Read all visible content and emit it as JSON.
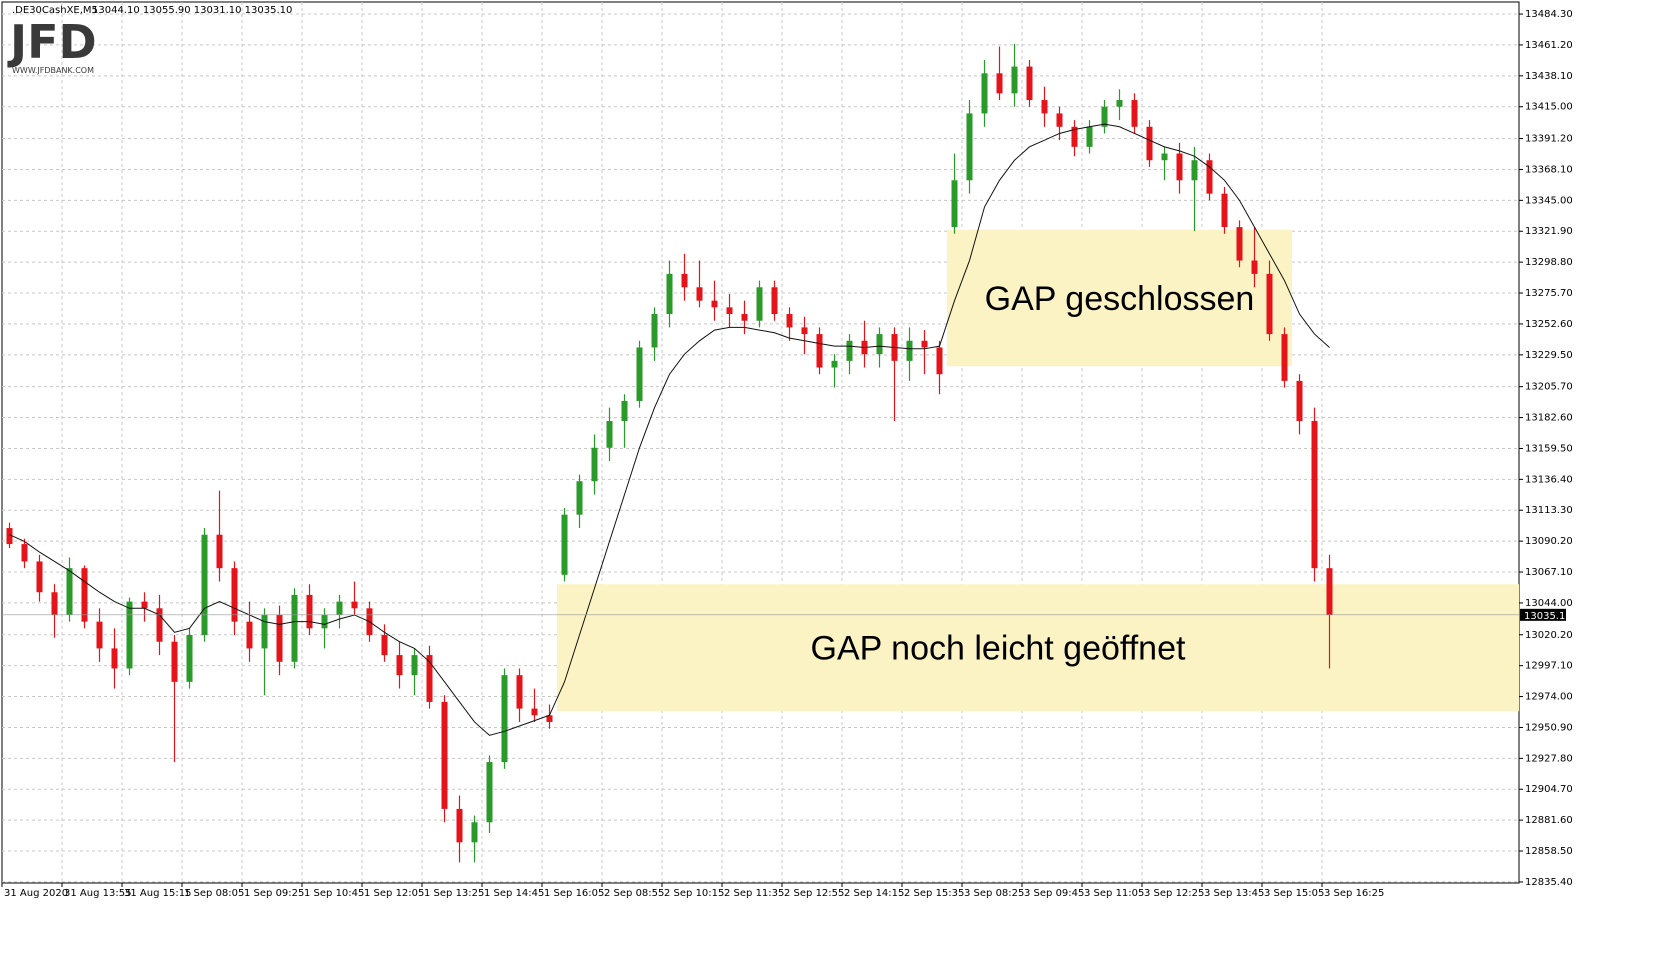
{
  "chart_data": {
    "type": "candlestick",
    "symbol": ".DE30CashXE,M5",
    "header_values": "13044.10 13055.90 13031.10 13035.10",
    "logo": {
      "mark": "JFD",
      "site": "WWW.JFDBANK.COM"
    },
    "x_labels": [
      "31 Aug 2020",
      "31 Aug 13:55",
      "31 Aug 15:15",
      "1 Sep 08:05",
      "1 Sep 09:25",
      "1 Sep 10:45",
      "1 Sep 12:05",
      "1 Sep 13:25",
      "1 Sep 14:45",
      "1 Sep 16:05",
      "2 Sep 08:55",
      "2 Sep 10:15",
      "2 Sep 11:35",
      "2 Sep 12:55",
      "2 Sep 14:15",
      "2 Sep 15:35",
      "3 Sep 08:25",
      "3 Sep 09:45",
      "3 Sep 11:05",
      "3 Sep 12:25",
      "3 Sep 13:45",
      "3 Sep 15:05",
      "3 Sep 16:25"
    ],
    "open": [
      13100,
      13088,
      13075,
      13052,
      13035,
      13070,
      13030,
      13010,
      12995,
      13045,
      13040,
      13015,
      12985,
      13020,
      13095,
      13070,
      13030,
      13010,
      13035,
      13000,
      13050,
      13025,
      13035,
      13045,
      13040,
      13020,
      13005,
      12990,
      13005,
      12970,
      12890,
      12865,
      12880,
      12925,
      12990,
      12965,
      12960,
      13065,
      13110,
      13135,
      13160,
      13180,
      13195,
      13235,
      13260,
      13290,
      13280,
      13270,
      13265,
      13260,
      13255,
      13280,
      13260,
      13250,
      13245,
      13220,
      13225,
      13240,
      13230,
      13245,
      13225,
      13240,
      13235,
      13325,
      13360,
      13410,
      13440,
      13425,
      13445,
      13420,
      13410,
      13400,
      13385,
      13400,
      13415,
      13420,
      13400,
      13375,
      13380,
      13360,
      13375,
      13350,
      13325,
      13300,
      13290,
      13245,
      13210,
      13180,
      13070
    ],
    "high": [
      13104,
      13092,
      13080,
      13058,
      13078,
      13072,
      13040,
      13025,
      13048,
      13052,
      13050,
      13020,
      13025,
      13100,
      13128,
      13075,
      13045,
      13040,
      13042,
      13055,
      13058,
      13040,
      13050,
      13060,
      13045,
      13028,
      13015,
      13010,
      13012,
      12975,
      12900,
      12885,
      12930,
      12995,
      12995,
      12980,
      12968,
      13115,
      13140,
      13170,
      13190,
      13200,
      13240,
      13265,
      13300,
      13305,
      13300,
      13285,
      13275,
      13270,
      13285,
      13285,
      13265,
      13258,
      13250,
      13230,
      13245,
      13255,
      13250,
      13250,
      13250,
      13248,
      13240,
      13380,
      13420,
      13450,
      13460,
      13462,
      13450,
      13430,
      13415,
      13405,
      13405,
      13420,
      13428,
      13425,
      13405,
      13385,
      13388,
      13385,
      13380,
      13355,
      13330,
      13325,
      13300,
      13250,
      13215,
      13190,
      13080
    ],
    "low": [
      13085,
      13070,
      13045,
      13018,
      13030,
      13025,
      13000,
      12980,
      12990,
      13030,
      13005,
      12925,
      12980,
      13015,
      13060,
      13020,
      13000,
      12975,
      12990,
      12995,
      13020,
      13010,
      13025,
      13035,
      13015,
      13000,
      12980,
      12975,
      12965,
      12880,
      12850,
      12850,
      12872,
      12920,
      12955,
      12955,
      12950,
      13060,
      13100,
      13125,
      13150,
      13160,
      13190,
      13225,
      13250,
      13270,
      13265,
      13255,
      13250,
      13245,
      13250,
      13255,
      13240,
      13230,
      13215,
      13205,
      13215,
      13220,
      13220,
      13180,
      13210,
      13215,
      13200,
      13320,
      13350,
      13400,
      13420,
      13415,
      13415,
      13400,
      13390,
      13378,
      13380,
      13395,
      13405,
      13395,
      13370,
      13360,
      13350,
      13322,
      13345,
      13320,
      13295,
      13280,
      13240,
      13205,
      13170,
      13060,
      12995
    ],
    "close": [
      13088,
      13075,
      13052,
      13035,
      13070,
      13030,
      13010,
      12995,
      13045,
      13040,
      13015,
      12985,
      13020,
      13095,
      13070,
      13030,
      13010,
      13035,
      13000,
      13050,
      13025,
      13035,
      13045,
      13040,
      13020,
      13005,
      12990,
      13005,
      12970,
      12890,
      12865,
      12880,
      12925,
      12990,
      12965,
      12960,
      12955,
      13110,
      13135,
      13160,
      13180,
      13195,
      13235,
      13260,
      13290,
      13280,
      13270,
      13265,
      13260,
      13255,
      13280,
      13260,
      13250,
      13245,
      13220,
      13225,
      13240,
      13230,
      13245,
      13225,
      13240,
      13235,
      13215,
      13360,
      13410,
      13440,
      13425,
      13445,
      13420,
      13410,
      13400,
      13385,
      13400,
      13415,
      13420,
      13400,
      13375,
      13380,
      13360,
      13375,
      13350,
      13325,
      13300,
      13290,
      13245,
      13210,
      13180,
      13070,
      13035
    ],
    "moving_average": [
      13095,
      13090,
      13082,
      13075,
      13068,
      13060,
      13052,
      13045,
      13040,
      13040,
      13035,
      13022,
      13025,
      13040,
      13045,
      13040,
      13035,
      13030,
      13028,
      13030,
      13030,
      13028,
      13032,
      13035,
      13030,
      13022,
      13015,
      13010,
      13000,
      12985,
      12970,
      12955,
      12945,
      12948,
      12952,
      12956,
      12960,
      12985,
      13020,
      13055,
      13090,
      13125,
      13160,
      13190,
      13215,
      13230,
      13240,
      13248,
      13250,
      13250,
      13248,
      13246,
      13242,
      13240,
      13238,
      13236,
      13236,
      13235,
      13236,
      13235,
      13234,
      13234,
      13236,
      13270,
      13300,
      13340,
      13360,
      13375,
      13385,
      13390,
      13395,
      13398,
      13400,
      13402,
      13400,
      13395,
      13390,
      13385,
      13382,
      13378,
      13370,
      13360,
      13345,
      13325,
      13305,
      13285,
      13260,
      13245,
      13235
    ],
    "up_color": "#2a9a2a",
    "down_color": "#e5141b",
    "ma_color": "#111111",
    "ylim": [
      12834.6,
      13493.3
    ],
    "yticks": [
      {
        "value": 13484.3,
        "label": "13484.30"
      },
      {
        "value": 13461.2,
        "label": "13461.20"
      },
      {
        "value": 13438.1,
        "label": "13438.10"
      },
      {
        "value": 13415.0,
        "label": "13415.00"
      },
      {
        "value": 13391.2,
        "label": "13391.20"
      },
      {
        "value": 13368.1,
        "label": "13368.10"
      },
      {
        "value": 13345.0,
        "label": "13345.00"
      },
      {
        "value": 13321.9,
        "label": "13321.90"
      },
      {
        "value": 13298.8,
        "label": "13298.80"
      },
      {
        "value": 13275.7,
        "label": "13275.70"
      },
      {
        "value": 13252.6,
        "label": "13252.60"
      },
      {
        "value": 13229.5,
        "label": "13229.50"
      },
      {
        "value": 13205.7,
        "label": "13205.70"
      },
      {
        "value": 13182.6,
        "label": "13182.60"
      },
      {
        "value": 13159.5,
        "label": "13159.50"
      },
      {
        "value": 13136.4,
        "label": "13136.40"
      },
      {
        "value": 13113.3,
        "label": "13113.30"
      },
      {
        "value": 13090.2,
        "label": "13090.20"
      },
      {
        "value": 13067.1,
        "label": "13067.10"
      },
      {
        "value": 13044.0,
        "label": "13044.00"
      },
      {
        "value": 13020.2,
        "label": "13020.20"
      },
      {
        "value": 12997.1,
        "label": "12997.10"
      },
      {
        "value": 12974.0,
        "label": "12974.00"
      },
      {
        "value": 12950.9,
        "label": "12950.90"
      },
      {
        "value": 12927.8,
        "label": "12927.80"
      },
      {
        "value": 12904.7,
        "label": "12904.70"
      },
      {
        "value": 12881.6,
        "label": "12881.60"
      },
      {
        "value": 12858.5,
        "label": "12858.50"
      },
      {
        "value": 12835.4,
        "label": "12835.40"
      }
    ],
    "last_price": {
      "value": 13035.1,
      "label": "13035.10"
    },
    "grid": true,
    "zones": [
      {
        "start": 63,
        "end": 85,
        "top": 13323,
        "bottom": 13221,
        "label": "GAP geschlossen"
      },
      {
        "start": 37,
        "top": 13058,
        "bottom": 12963,
        "label": "GAP noch leicht geöffnet"
      }
    ],
    "zone_color": "#fbf3c4"
  }
}
